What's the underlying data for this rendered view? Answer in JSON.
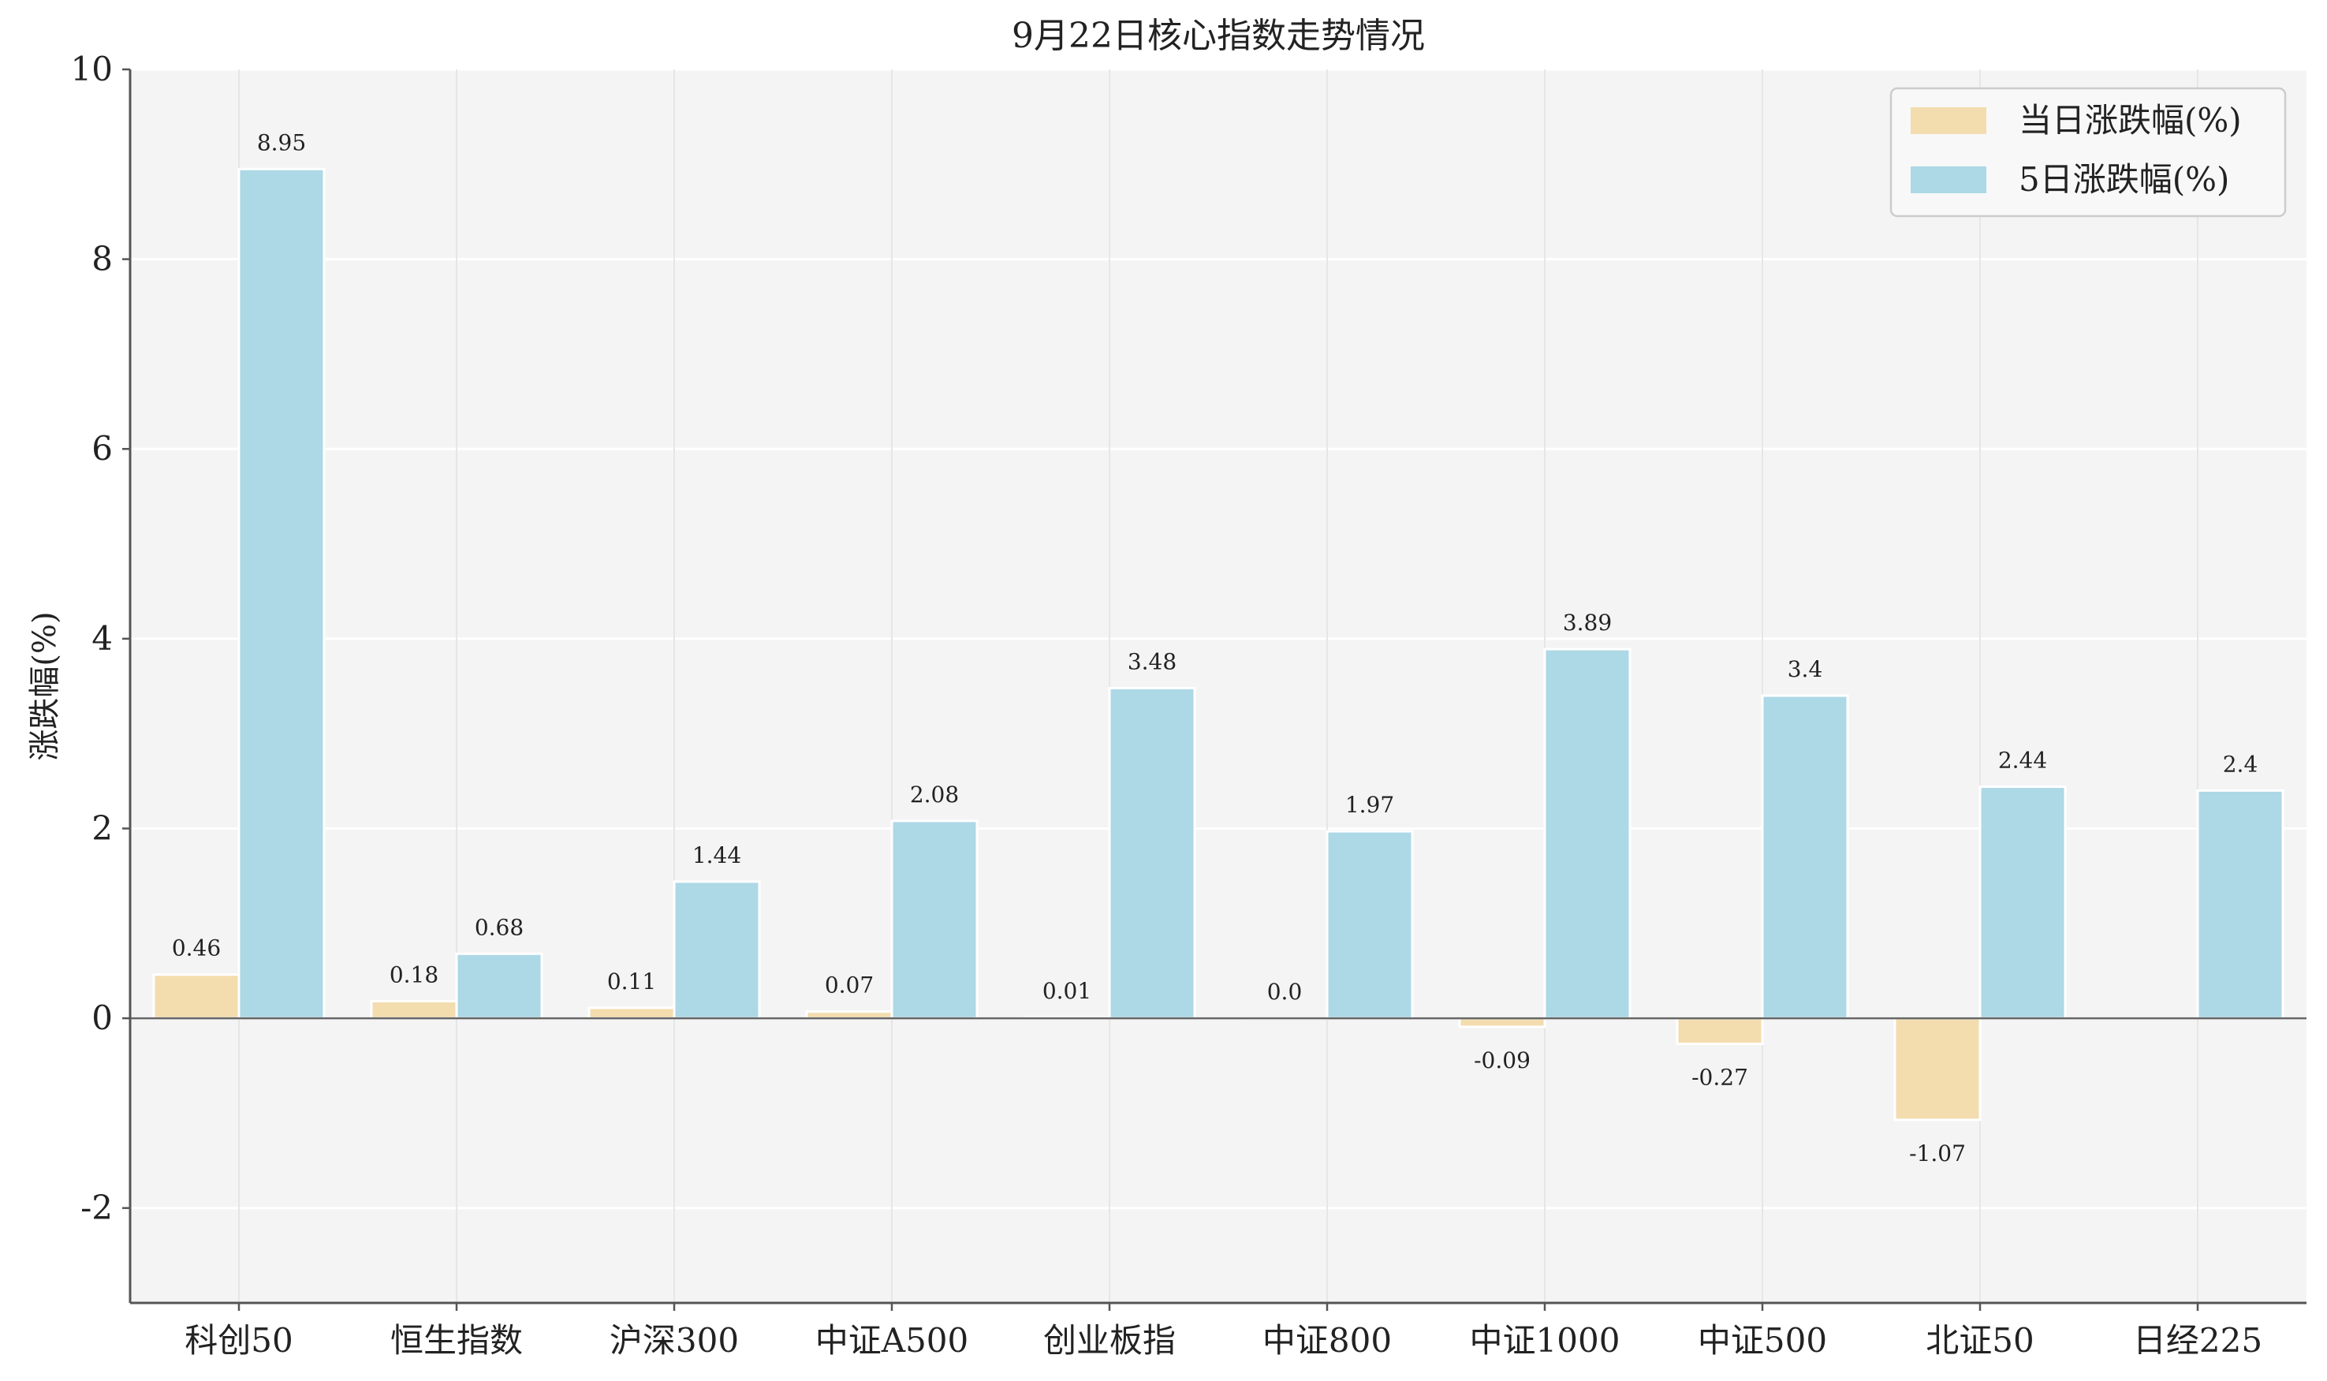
{
  "chart_data": {
    "type": "bar",
    "title": "9月22日核心指数走势情况",
    "xlabel": "",
    "ylabel": "涨跌幅(%)",
    "ylim": [
      -3,
      10
    ],
    "yticks": [
      -2,
      0,
      2,
      4,
      6,
      8,
      10
    ],
    "grid": true,
    "legend_position": "top-right",
    "categories": [
      "科创50",
      "恒生指数",
      "沪深300",
      "中证A500",
      "创业板指",
      "中证800",
      "中证1000",
      "中证500",
      "北证50",
      "日经225"
    ],
    "series": [
      {
        "name": "当日涨跌幅(%)",
        "color": "#f3dcae",
        "values": [
          0.46,
          0.18,
          0.11,
          0.07,
          0.01,
          0.0,
          -0.09,
          -0.27,
          -1.07,
          null
        ],
        "labels": [
          "0.46",
          "0.18",
          "0.11",
          "0.07",
          "0.01",
          "0.0",
          "-0.09",
          "-0.27",
          "-1.07",
          ""
        ]
      },
      {
        "name": "5日涨跌幅(%)",
        "color": "#add8e6",
        "values": [
          8.95,
          0.68,
          1.44,
          2.08,
          3.48,
          1.97,
          3.89,
          3.4,
          2.44,
          2.4
        ],
        "labels": [
          "8.95",
          "0.68",
          "1.44",
          "2.08",
          "3.48",
          "1.97",
          "3.89",
          "3.4",
          "2.44",
          "2.4"
        ]
      }
    ]
  }
}
